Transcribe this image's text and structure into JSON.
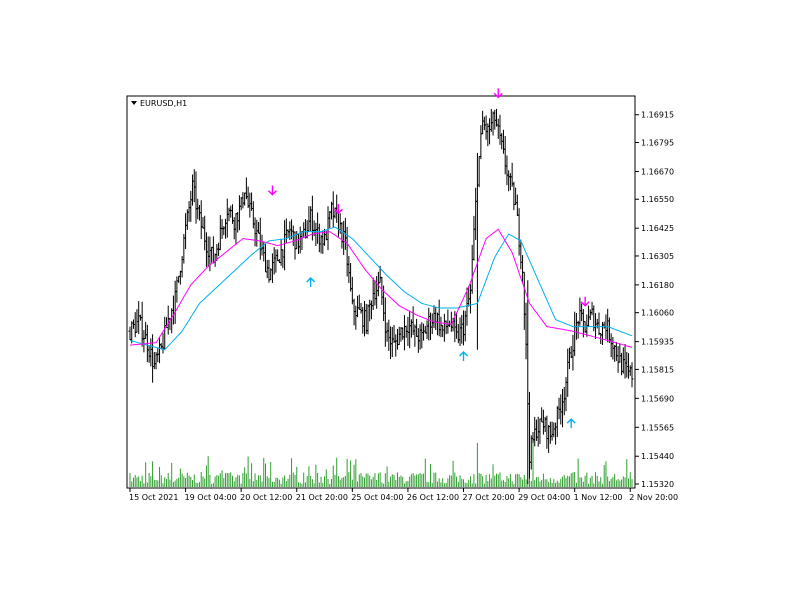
{
  "chart_data": {
    "type": "ohlc",
    "title": "EURUSD,H1",
    "symbol": "EURUSD",
    "timeframe": "H1",
    "colors": {
      "bars": "#000000",
      "volume": "#2e9e2e",
      "ma_fast": "#ff00ff",
      "ma_slow": "#00b0f0",
      "arrow_down": "#ff00ff",
      "arrow_up": "#00b0f0",
      "frame": "#000000",
      "background": "#ffffff"
    },
    "ylim": [
      1.1532,
      1.1697
    ],
    "y_ticks": [
      1.16915,
      1.16795,
      1.1667,
      1.1655,
      1.16425,
      1.16305,
      1.1618,
      1.1606,
      1.15935,
      1.15815,
      1.1569,
      1.15565,
      1.1544,
      1.1532
    ],
    "y_tick_labels": [
      "1.16915",
      "1.16795",
      "1.16670",
      "1.16550",
      "1.16425",
      "1.16305",
      "1.16180",
      "1.16060",
      "1.15935",
      "1.15815",
      "1.15690",
      "1.15565",
      "1.15440",
      "1.15320"
    ],
    "x_tick_labels": [
      "15 Oct 2021",
      "19 Oct 04:00",
      "20 Oct 12:00",
      "21 Oct 20:00",
      "25 Oct 04:00",
      "26 Oct 12:00",
      "27 Oct 20:00",
      "29 Oct 04:00",
      "1 Nov 12:00",
      "2 Nov 20:00"
    ],
    "x_tick_index": [
      0,
      32,
      64,
      96,
      128,
      160,
      192,
      224,
      256,
      288
    ],
    "bar_count": 290,
    "close_path": [
      [
        0,
        1.1598
      ],
      [
        5,
        1.1602
      ],
      [
        10,
        1.1593
      ],
      [
        14,
        1.1583
      ],
      [
        18,
        1.159
      ],
      [
        22,
        1.1603
      ],
      [
        26,
        1.1612
      ],
      [
        32,
        1.1642
      ],
      [
        36,
        1.166
      ],
      [
        40,
        1.1646
      ],
      [
        44,
        1.1636
      ],
      [
        48,
        1.1629
      ],
      [
        52,
        1.164
      ],
      [
        56,
        1.1651
      ],
      [
        60,
        1.1646
      ],
      [
        64,
        1.1652
      ],
      [
        66,
        1.166
      ],
      [
        68,
        1.1652
      ],
      [
        72,
        1.1643
      ],
      [
        76,
        1.1632
      ],
      [
        80,
        1.1623
      ],
      [
        84,
        1.1628
      ],
      [
        88,
        1.1634
      ],
      [
        92,
        1.1642
      ],
      [
        96,
        1.1636
      ],
      [
        100,
        1.1639
      ],
      [
        104,
        1.1647
      ],
      [
        108,
        1.164
      ],
      [
        112,
        1.1637
      ],
      [
        116,
        1.165
      ],
      [
        120,
        1.1645
      ],
      [
        124,
        1.1635
      ],
      [
        128,
        1.1608
      ],
      [
        132,
        1.1606
      ],
      [
        136,
        1.1602
      ],
      [
        140,
        1.1615
      ],
      [
        144,
        1.1618
      ],
      [
        148,
        1.1596
      ],
      [
        152,
        1.1592
      ],
      [
        156,
        1.1598
      ],
      [
        160,
        1.1601
      ],
      [
        164,
        1.1597
      ],
      [
        168,
        1.1595
      ],
      [
        172,
        1.1602
      ],
      [
        176,
        1.1605
      ],
      [
        180,
        1.1598
      ],
      [
        184,
        1.1602
      ],
      [
        188,
        1.1595
      ],
      [
        192,
        1.16
      ],
      [
        196,
        1.1615
      ],
      [
        200,
        1.1665
      ],
      [
        203,
        1.1688
      ],
      [
        206,
        1.1684
      ],
      [
        210,
        1.169
      ],
      [
        214,
        1.1677
      ],
      [
        218,
        1.1664
      ],
      [
        222,
        1.1652
      ],
      [
        226,
        1.1625
      ],
      [
        228,
        1.159
      ],
      [
        230,
        1.1545
      ],
      [
        234,
        1.1556
      ],
      [
        238,
        1.1558
      ],
      [
        242,
        1.1553
      ],
      [
        246,
        1.1561
      ],
      [
        250,
        1.1572
      ],
      [
        254,
        1.159
      ],
      [
        258,
        1.1604
      ],
      [
        262,
        1.16
      ],
      [
        266,
        1.1605
      ],
      [
        270,
        1.1599
      ],
      [
        274,
        1.1601
      ],
      [
        278,
        1.1593
      ],
      [
        282,
        1.1585
      ],
      [
        286,
        1.158
      ],
      [
        289,
        1.1579
      ]
    ],
    "ma_fast_path": [
      [
        0,
        1.1592
      ],
      [
        15,
        1.1593
      ],
      [
        25,
        1.1605
      ],
      [
        35,
        1.1618
      ],
      [
        45,
        1.1626
      ],
      [
        55,
        1.1632
      ],
      [
        65,
        1.1638
      ],
      [
        75,
        1.1637
      ],
      [
        85,
        1.1635
      ],
      [
        95,
        1.1637
      ],
      [
        105,
        1.164
      ],
      [
        115,
        1.1641
      ],
      [
        125,
        1.1636
      ],
      [
        135,
        1.1625
      ],
      [
        145,
        1.1616
      ],
      [
        155,
        1.1609
      ],
      [
        165,
        1.1605
      ],
      [
        175,
        1.1602
      ],
      [
        185,
        1.1601
      ],
      [
        195,
        1.1617
      ],
      [
        205,
        1.1638
      ],
      [
        212,
        1.1642
      ],
      [
        220,
        1.1632
      ],
      [
        230,
        1.161
      ],
      [
        240,
        1.16
      ],
      [
        255,
        1.1598
      ],
      [
        265,
        1.1596
      ],
      [
        280,
        1.1593
      ],
      [
        289,
        1.1591
      ]
    ],
    "ma_slow_path": [
      [
        0,
        1.1594
      ],
      [
        10,
        1.1592
      ],
      [
        20,
        1.159
      ],
      [
        30,
        1.1598
      ],
      [
        40,
        1.161
      ],
      [
        50,
        1.1617
      ],
      [
        60,
        1.1624
      ],
      [
        70,
        1.1631
      ],
      [
        80,
        1.1637
      ],
      [
        90,
        1.1638
      ],
      [
        100,
        1.1641
      ],
      [
        110,
        1.1641
      ],
      [
        118,
        1.1643
      ],
      [
        128,
        1.1638
      ],
      [
        138,
        1.163
      ],
      [
        148,
        1.1622
      ],
      [
        158,
        1.1615
      ],
      [
        168,
        1.161
      ],
      [
        178,
        1.1608
      ],
      [
        188,
        1.1608
      ],
      [
        200,
        1.161
      ],
      [
        210,
        1.163
      ],
      [
        218,
        1.164
      ],
      [
        225,
        1.1637
      ],
      [
        235,
        1.162
      ],
      [
        245,
        1.1603
      ],
      [
        255,
        1.16
      ],
      [
        265,
        1.16
      ],
      [
        275,
        1.16
      ],
      [
        289,
        1.1596
      ]
    ],
    "signal_arrows": [
      {
        "index": 82,
        "price": 1.1657,
        "direction": "down"
      },
      {
        "index": 120,
        "price": 1.1649,
        "direction": "down"
      },
      {
        "index": 212,
        "price": 1.1699,
        "direction": "down"
      },
      {
        "index": 262,
        "price": 1.1609,
        "direction": "down"
      },
      {
        "index": 104,
        "price": 1.1621,
        "direction": "up"
      },
      {
        "index": 192,
        "price": 1.1589,
        "direction": "up"
      },
      {
        "index": 254,
        "price": 1.156,
        "direction": "up"
      }
    ],
    "grid": false,
    "legend": "none"
  }
}
